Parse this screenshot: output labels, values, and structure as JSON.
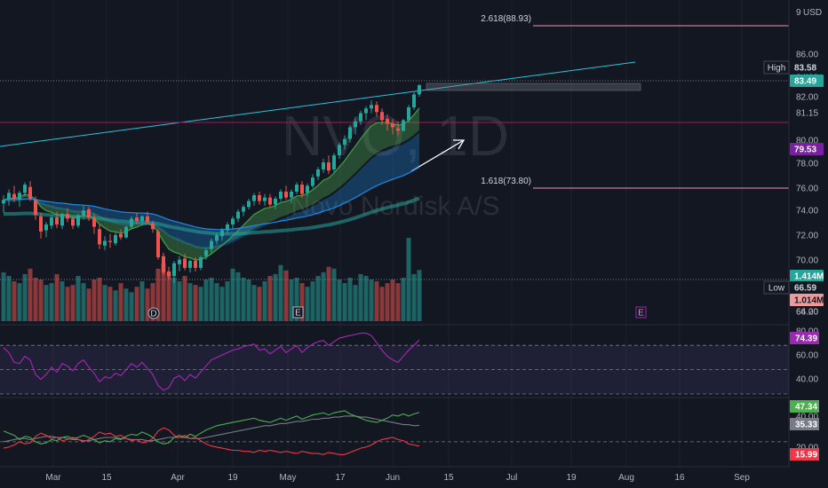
{
  "symbol": "NVO, 1D",
  "company": "Novo Nordisk A/S",
  "currency": "USD",
  "header_tick": "9",
  "price_axis": {
    "ticks": [
      "86.00",
      "84.00",
      "82.00",
      "81.15",
      "80.00",
      "78.00",
      "76.00",
      "74.00",
      "72.00",
      "70.00",
      "68.00",
      "66.00",
      "64.20"
    ],
    "badges": [
      {
        "prefix": "High",
        "value": "83.58",
        "color": "#131722",
        "text_color": "#d1d4dc"
      },
      {
        "prefix": "",
        "value": "83.49",
        "color": "#26a69a",
        "text_color": "#ffffff"
      },
      {
        "prefix": "",
        "value": "79.53",
        "color": "#7b1fa2",
        "text_color": "#ffffff"
      },
      {
        "prefix": "",
        "value": "1.414M",
        "color": "#26a69a",
        "text_color": "#ffffff"
      },
      {
        "prefix": "Low",
        "value": "66.59",
        "color": "#131722",
        "text_color": "#d1d4dc"
      },
      {
        "prefix": "",
        "value": "1.014M",
        "color": "#ef9a9a",
        "text_color": "#131722"
      }
    ]
  },
  "time_axis": [
    "Mar",
    "15",
    "Apr",
    "19",
    "May",
    "17",
    "Jun",
    "15",
    "Jul",
    "19",
    "Aug",
    "16",
    "Sep"
  ],
  "fib_levels": [
    {
      "label": "2.618(88.93)",
      "price": 88.93,
      "color": "#f48fb1"
    },
    {
      "label": "1.618(73.80)",
      "price": 73.8,
      "color": "#f48fb1"
    }
  ],
  "event_markers": [
    "D",
    "E",
    "E"
  ],
  "rsi": {
    "ticks": [
      "80.00",
      "60.00",
      "40.00"
    ],
    "value": "74.39",
    "color": "#9c27b0"
  },
  "dmi": {
    "ticks": [
      "40.00",
      "20.00"
    ],
    "values": [
      {
        "value": "47.34",
        "color": "#4caf50"
      },
      {
        "value": "35.33",
        "color": "#787b86"
      },
      {
        "value": "15.99",
        "color": "#f23645"
      }
    ]
  },
  "chart_data": {
    "type": "candlestick",
    "title": "NVO, 1D",
    "subtitle": "Novo Nordisk A/S",
    "ylim": [
      63.5,
      90
    ],
    "ohlc": [
      [
        73.4,
        74.1,
        72.6,
        73.7
      ],
      [
        73.8,
        74.6,
        73.2,
        74.3
      ],
      [
        74.2,
        74.9,
        73.5,
        73.8
      ],
      [
        73.7,
        74.5,
        73.1,
        74.3
      ],
      [
        74.3,
        75.2,
        74.0,
        75.0
      ],
      [
        74.8,
        75.3,
        73.6,
        73.8
      ],
      [
        73.7,
        74.0,
        72.0,
        72.4
      ],
      [
        72.3,
        72.6,
        70.4,
        71.0
      ],
      [
        71.1,
        71.8,
        70.5,
        71.6
      ],
      [
        71.5,
        72.4,
        71.2,
        72.2
      ],
      [
        72.2,
        72.7,
        71.3,
        71.6
      ],
      [
        71.5,
        72.6,
        71.2,
        72.5
      ],
      [
        72.5,
        73.0,
        71.8,
        72.1
      ],
      [
        72.1,
        72.3,
        71.2,
        71.5
      ],
      [
        71.5,
        72.5,
        71.3,
        72.4
      ],
      [
        72.4,
        73.2,
        72.0,
        72.8
      ],
      [
        72.9,
        73.1,
        71.9,
        72.2
      ],
      [
        72.2,
        72.5,
        70.8,
        71.4
      ],
      [
        71.2,
        71.6,
        69.5,
        69.9
      ],
      [
        69.8,
        70.6,
        69.4,
        70.2
      ],
      [
        70.2,
        70.8,
        69.6,
        70.1
      ],
      [
        70.0,
        70.9,
        69.8,
        70.7
      ],
      [
        70.8,
        71.2,
        70.3,
        70.5
      ],
      [
        70.5,
        71.5,
        70.4,
        71.4
      ],
      [
        71.4,
        72.3,
        71.2,
        72.1
      ],
      [
        72.2,
        72.6,
        71.6,
        71.9
      ],
      [
        71.9,
        72.4,
        71.5,
        72.3
      ],
      [
        72.3,
        72.7,
        71.6,
        71.8
      ],
      [
        71.7,
        71.9,
        70.9,
        71.2
      ],
      [
        71.0,
        71.2,
        68.6,
        68.8
      ],
      [
        68.9,
        69.2,
        67.3,
        67.5
      ],
      [
        67.6,
        68.0,
        66.9,
        67.2
      ],
      [
        67.2,
        68.5,
        66.6,
        68.3
      ],
      [
        68.2,
        68.9,
        67.6,
        68.6
      ],
      [
        68.7,
        69.1,
        67.7,
        67.9
      ],
      [
        67.9,
        68.6,
        67.5,
        68.5
      ],
      [
        68.5,
        68.8,
        67.6,
        67.9
      ],
      [
        67.9,
        68.9,
        67.7,
        68.8
      ],
      [
        68.9,
        69.6,
        68.6,
        69.4
      ],
      [
        69.5,
        70.4,
        69.2,
        70.2
      ],
      [
        70.2,
        70.9,
        69.9,
        70.7
      ],
      [
        70.6,
        71.3,
        70.2,
        71.1
      ],
      [
        71.1,
        71.8,
        70.8,
        71.6
      ],
      [
        71.6,
        72.3,
        71.2,
        72.1
      ],
      [
        72.1,
        72.9,
        71.8,
        72.7
      ],
      [
        72.7,
        73.3,
        72.3,
        73.1
      ],
      [
        73.1,
        73.8,
        72.9,
        73.6
      ],
      [
        73.6,
        74.3,
        73.2,
        74.1
      ],
      [
        74.1,
        74.4,
        73.3,
        73.6
      ],
      [
        73.6,
        74.2,
        73.2,
        73.9
      ],
      [
        73.9,
        74.2,
        73.1,
        73.3
      ],
      [
        73.3,
        74.0,
        72.9,
        73.8
      ],
      [
        73.8,
        74.6,
        73.6,
        74.4
      ],
      [
        74.4,
        74.9,
        73.7,
        73.9
      ],
      [
        73.9,
        74.6,
        73.4,
        74.4
      ],
      [
        74.4,
        75.2,
        74.2,
        75.0
      ],
      [
        75.0,
        75.3,
        73.9,
        74.2
      ],
      [
        74.3,
        75.1,
        74.0,
        74.9
      ],
      [
        74.9,
        75.9,
        74.7,
        75.6
      ],
      [
        75.7,
        76.5,
        75.4,
        76.3
      ],
      [
        76.3,
        77.2,
        76.0,
        76.9
      ],
      [
        76.9,
        77.5,
        75.9,
        76.2
      ],
      [
        76.3,
        77.7,
        76.0,
        77.5
      ],
      [
        77.5,
        78.6,
        77.2,
        78.4
      ],
      [
        78.4,
        79.2,
        78.0,
        78.9
      ],
      [
        78.9,
        80.1,
        78.6,
        79.9
      ],
      [
        79.9,
        80.7,
        79.3,
        80.4
      ],
      [
        80.4,
        81.3,
        80.1,
        81.1
      ],
      [
        81.1,
        81.7,
        80.5,
        81.5
      ],
      [
        81.5,
        82.2,
        81.1,
        81.8
      ],
      [
        81.8,
        82.1,
        80.8,
        81.2
      ],
      [
        81.2,
        81.5,
        80.1,
        80.5
      ],
      [
        80.6,
        81.0,
        79.6,
        80.2
      ],
      [
        80.2,
        80.6,
        79.3,
        79.9
      ],
      [
        79.8,
        80.4,
        79.2,
        79.6
      ],
      [
        79.6,
        80.6,
        79.5,
        80.5
      ],
      [
        80.5,
        81.8,
        80.3,
        81.6
      ],
      [
        81.6,
        82.9,
        81.4,
        82.7
      ],
      [
        82.7,
        83.58,
        82.5,
        83.49
      ]
    ],
    "volume_millions": [
      1.35,
      1.25,
      1.1,
      1.05,
      1.3,
      1.45,
      1.2,
      1.15,
      1.0,
      1.05,
      1.3,
      1.1,
      0.95,
      1.0,
      1.25,
      1.05,
      0.9,
      1.15,
      1.2,
      1.0,
      0.95,
      0.85,
      1.05,
      0.9,
      0.8,
      0.95,
      1.1,
      0.9,
      1.05,
      1.45,
      1.6,
      1.35,
      1.2,
      1.1,
      1.25,
      1.05,
      1.0,
      0.95,
      1.15,
      1.2,
      1.05,
      0.95,
      1.1,
      1.45,
      1.35,
      1.2,
      1.15,
      1.0,
      0.95,
      1.1,
      1.25,
      1.3,
      1.55,
      1.4,
      1.15,
      1.2,
      1.05,
      0.95,
      1.1,
      1.25,
      1.35,
      1.5,
      1.45,
      1.15,
      1.05,
      1.2,
      1.0,
      1.3,
      1.25,
      1.15,
      1.1,
      0.95,
      1.05,
      1.15,
      1.05,
      1.2,
      2.3,
      1.3,
      1.414
    ],
    "volume_ylim": [
      0,
      2.4
    ],
    "rsi_values": [
      68,
      64,
      56,
      55,
      61,
      58,
      46,
      42,
      46,
      52,
      48,
      55,
      53,
      49,
      55,
      58,
      52,
      47,
      40,
      44,
      43,
      47,
      45,
      50,
      55,
      52,
      56,
      51,
      46,
      37,
      33,
      35,
      43,
      45,
      41,
      46,
      43,
      48,
      53,
      58,
      60,
      62,
      64,
      66,
      67,
      69,
      70,
      71,
      66,
      67,
      63,
      66,
      69,
      64,
      67,
      70,
      64,
      68,
      71,
      73,
      74,
      70,
      73,
      76,
      77,
      78,
      79,
      80,
      80,
      78,
      72,
      66,
      61,
      58,
      56,
      61,
      66,
      70,
      74.39
    ],
    "rsi_ylim": [
      30,
      84
    ],
    "dmi_plus": [
      30,
      28,
      26,
      22,
      25,
      24,
      20,
      18,
      19,
      22,
      21,
      24,
      25,
      23,
      24,
      26,
      24,
      22,
      19,
      21,
      20,
      23,
      22,
      25,
      27,
      26,
      29,
      27,
      24,
      20,
      18,
      19,
      24,
      26,
      24,
      27,
      25,
      28,
      31,
      33,
      35,
      36,
      37,
      38,
      39,
      40,
      41,
      42,
      40,
      39,
      38,
      40,
      42,
      40,
      42,
      44,
      41,
      43,
      45,
      46,
      47,
      45,
      47,
      48,
      49,
      46,
      44,
      42,
      40,
      39,
      38,
      40,
      42,
      45,
      44,
      46,
      44,
      46,
      47.34
    ],
    "dmi_minus": [
      14,
      15,
      17,
      20,
      18,
      19,
      25,
      28,
      26,
      23,
      24,
      21,
      22,
      24,
      22,
      20,
      22,
      25,
      29,
      27,
      28,
      25,
      26,
      23,
      21,
      22,
      19,
      20,
      23,
      30,
      33,
      31,
      26,
      24,
      26,
      23,
      24,
      21,
      18,
      16,
      15,
      14,
      13,
      12,
      12,
      11,
      11,
      10,
      12,
      11,
      12,
      11,
      10,
      11,
      10,
      9,
      11,
      10,
      9,
      9,
      8,
      10,
      9,
      8,
      8,
      10,
      12,
      14,
      15,
      17,
      20,
      22,
      23,
      24,
      22,
      21,
      18,
      17,
      15.99
    ],
    "adx": [
      20,
      21,
      22,
      23,
      23,
      22,
      23,
      24,
      25,
      25,
      24,
      24,
      23,
      22,
      22,
      21,
      21,
      22,
      23,
      24,
      24,
      24,
      23,
      23,
      22,
      22,
      22,
      21,
      21,
      22,
      23,
      24,
      24,
      24,
      24,
      23,
      23,
      23,
      24,
      25,
      26,
      27,
      28,
      29,
      30,
      31,
      32,
      33,
      34,
      35,
      35,
      36,
      37,
      37,
      38,
      39,
      39,
      40,
      41,
      41,
      42,
      42,
      43,
      43,
      44,
      44,
      44,
      43,
      43,
      42,
      41,
      40,
      39,
      38,
      37,
      36,
      36,
      35,
      35.33
    ]
  }
}
